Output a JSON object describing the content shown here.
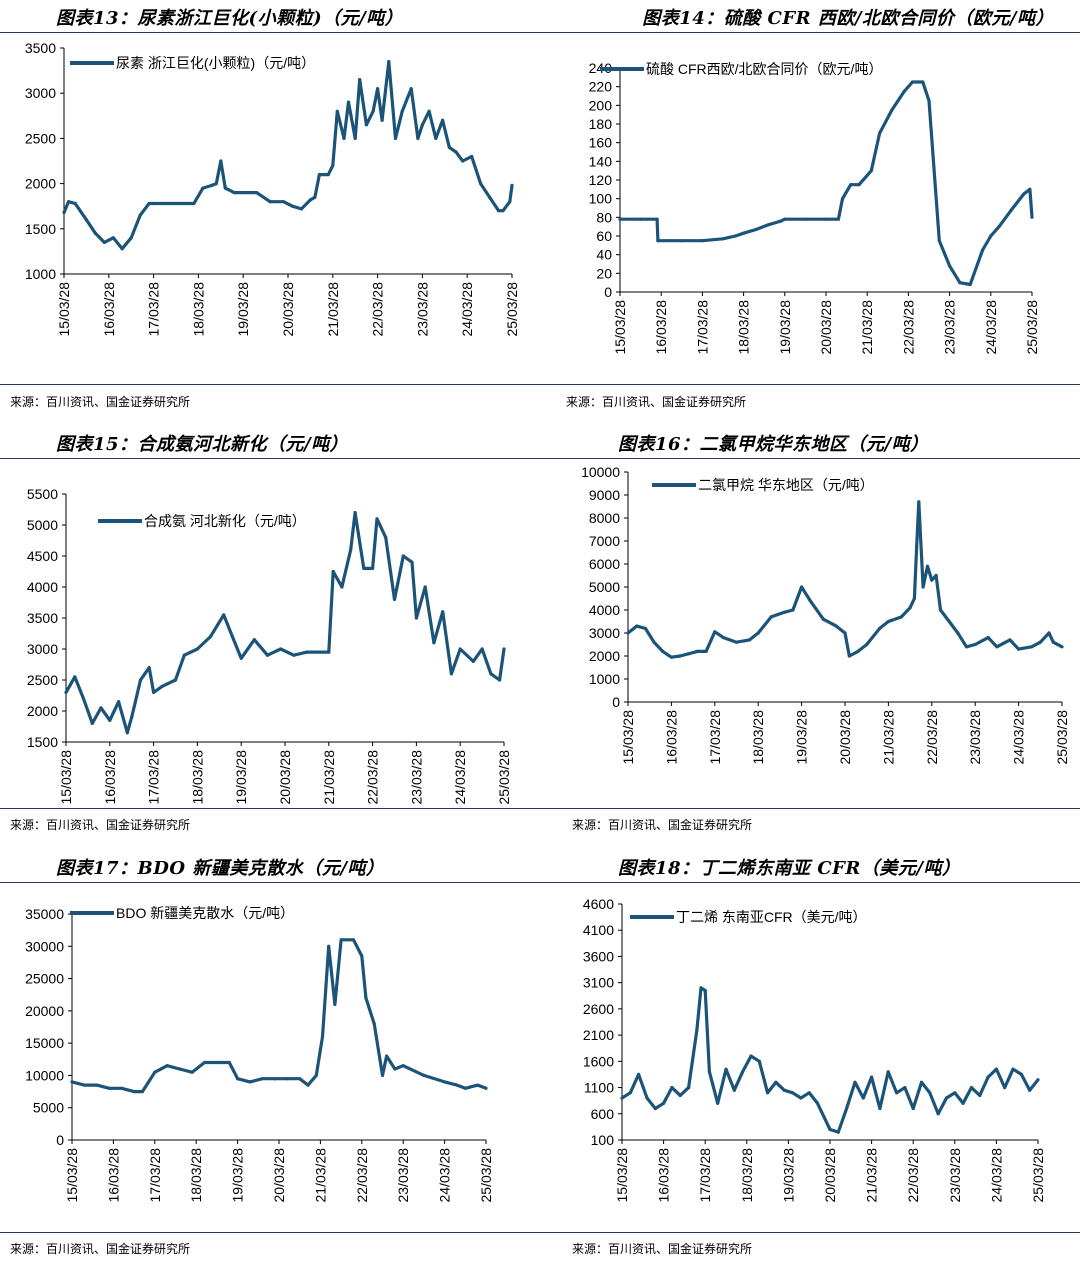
{
  "panels": [
    {
      "title": "图表13：尿素浙江巨化(小颗粒)（元/吨）",
      "source": "来源：百川资讯、国金证券研究所",
      "chart_data": {
        "type": "line",
        "title": "图表13：尿素浙江巨化(小颗粒)（元/吨）",
        "x_ticks": [
          "15/03/28",
          "16/03/28",
          "17/03/28",
          "18/03/28",
          "19/03/28",
          "20/03/28",
          "21/03/28",
          "22/03/28",
          "23/03/28",
          "24/03/28",
          "25/03/28"
        ],
        "ylim": [
          1000,
          3500
        ],
        "y_ticks": [
          1000,
          1500,
          2000,
          2500,
          3000,
          3500
        ],
        "series": [
          {
            "name": "尿素 浙江巨化(小颗粒)（元/吨）",
            "x": [
              0,
              0.1,
              0.25,
              0.5,
              0.7,
              0.9,
              1.1,
              1.3,
              1.5,
              1.7,
              1.9,
              2.0,
              2.3,
              2.6,
              2.9,
              3.1,
              3.3,
              3.4,
              3.5,
              3.6,
              3.8,
              4.0,
              4.3,
              4.6,
              4.9,
              5.1,
              5.3,
              5.5,
              5.6,
              5.7,
              5.9,
              6.0,
              6.1,
              6.25,
              6.35,
              6.5,
              6.6,
              6.75,
              6.9,
              7.0,
              7.1,
              7.25,
              7.4,
              7.55,
              7.75,
              7.9,
              8.0,
              8.15,
              8.3,
              8.45,
              8.6,
              8.75,
              8.9,
              9.1,
              9.3,
              9.5,
              9.7,
              9.8,
              9.95,
              10.0
            ],
            "values": [
              1680,
              1800,
              1780,
              1600,
              1450,
              1350,
              1400,
              1280,
              1400,
              1650,
              1780,
              1780,
              1780,
              1780,
              1780,
              1950,
              1980,
              2000,
              2250,
              1950,
              1900,
              1900,
              1900,
              1800,
              1800,
              1750,
              1720,
              1820,
              1850,
              2100,
              2100,
              2200,
              2800,
              2500,
              2900,
              2500,
              3150,
              2650,
              2800,
              3050,
              2700,
              3350,
              2500,
              2800,
              3050,
              2500,
              2650,
              2800,
              2500,
              2700,
              2400,
              2350,
              2250,
              2300,
              2000,
              1850,
              1700,
              1700,
              1800,
              1980
            ]
          }
        ]
      }
    },
    {
      "title": "图表14：硫酸 CFR 西欧/北欧合同价（欧元/吨）",
      "source": "来源：百川资讯、国金证券研究所",
      "chart_data": {
        "type": "line",
        "title": "图表14：硫酸 CFR 西欧/北欧合同价（欧元/吨）",
        "x_ticks": [
          "15/03/28",
          "16/03/28",
          "17/03/28",
          "18/03/28",
          "19/03/28",
          "20/03/28",
          "21/03/28",
          "22/03/28",
          "23/03/28",
          "24/03/28",
          "25/03/28"
        ],
        "ylim": [
          0,
          240
        ],
        "y_ticks": [
          0,
          20,
          40,
          60,
          80,
          100,
          120,
          140,
          160,
          180,
          200,
          220,
          240
        ],
        "series": [
          {
            "name": "硫酸 CFR西欧/北欧合同价（欧元/吨）",
            "x": [
              0,
              0.5,
              0.9,
              0.92,
              1.5,
              2.0,
              2.5,
              2.8,
              3.0,
              3.3,
              3.6,
              3.9,
              4.0,
              4.5,
              5.0,
              5.3,
              5.4,
              5.6,
              5.8,
              6.1,
              6.3,
              6.6,
              6.9,
              7.1,
              7.35,
              7.5,
              7.75,
              8.0,
              8.25,
              8.5,
              8.8,
              9.0,
              9.2,
              9.5,
              9.8,
              9.95,
              10.0
            ],
            "values": [
              78,
              78,
              78,
              55,
              55,
              55,
              57,
              60,
              63,
              67,
              72,
              76,
              78,
              78,
              78,
              78,
              100,
              115,
              115,
              130,
              170,
              195,
              215,
              225,
              225,
              205,
              55,
              28,
              10,
              8,
              45,
              60,
              70,
              88,
              105,
              110,
              80
            ]
          }
        ]
      }
    },
    {
      "title": "图表15：合成氨河北新化（元/吨）",
      "source": "来源：百川资讯、国金证券研究所",
      "chart_data": {
        "type": "line",
        "title": "图表15：合成氨河北新化（元/吨）",
        "x_ticks": [
          "15/03/28",
          "16/03/28",
          "17/03/28",
          "18/03/28",
          "19/03/28",
          "20/03/28",
          "21/03/28",
          "22/03/28",
          "23/03/28",
          "24/03/28",
          "25/03/28"
        ],
        "ylim": [
          1500,
          5500
        ],
        "y_ticks": [
          1500,
          2000,
          2500,
          3000,
          3500,
          4000,
          4500,
          5000,
          5500
        ],
        "series": [
          {
            "name": "合成氨 河北新化（元/吨）",
            "x": [
              0,
              0.2,
              0.4,
              0.6,
              0.8,
              1.0,
              1.2,
              1.4,
              1.5,
              1.7,
              1.9,
              2.0,
              2.2,
              2.5,
              2.7,
              3.0,
              3.3,
              3.6,
              3.8,
              4.0,
              4.3,
              4.6,
              4.9,
              5.2,
              5.5,
              5.8,
              6.0,
              6.1,
              6.3,
              6.5,
              6.6,
              6.8,
              7.0,
              7.1,
              7.3,
              7.5,
              7.7,
              7.9,
              8.0,
              8.2,
              8.4,
              8.6,
              8.8,
              9.0,
              9.3,
              9.5,
              9.7,
              9.9,
              10.0
            ],
            "values": [
              2300,
              2550,
              2200,
              1800,
              2050,
              1850,
              2150,
              1650,
              1900,
              2500,
              2700,
              2300,
              2400,
              2500,
              2900,
              3000,
              3200,
              3550,
              3200,
              2850,
              3150,
              2900,
              3000,
              2900,
              2950,
              2950,
              2950,
              4250,
              4000,
              4600,
              5200,
              4300,
              4300,
              5100,
              4800,
              3800,
              4500,
              4400,
              3500,
              4000,
              3100,
              3600,
              2600,
              3000,
              2800,
              3000,
              2600,
              2500,
              3000
            ]
          }
        ]
      }
    },
    {
      "title": "图表16：二氯甲烷华东地区（元/吨）",
      "source": "来源：百川资讯、国金证券研究所",
      "chart_data": {
        "type": "line",
        "title": "图表16：二氯甲烷华东地区（元/吨）",
        "x_ticks": [
          "15/03/28",
          "16/03/28",
          "17/03/28",
          "18/03/28",
          "19/03/28",
          "20/03/28",
          "21/03/28",
          "22/03/28",
          "23/03/28",
          "24/03/28",
          "25/03/28"
        ],
        "ylim": [
          0,
          10000
        ],
        "y_ticks": [
          0,
          1000,
          2000,
          3000,
          4000,
          5000,
          6000,
          7000,
          8000,
          9000,
          10000
        ],
        "series": [
          {
            "name": "二氯甲烷 华东地区（元/吨）",
            "x": [
              0,
              0.2,
              0.4,
              0.6,
              0.8,
              1.0,
              1.2,
              1.4,
              1.6,
              1.8,
              2.0,
              2.2,
              2.5,
              2.8,
              3.0,
              3.3,
              3.6,
              3.8,
              4.0,
              4.2,
              4.5,
              4.8,
              5.0,
              5.1,
              5.3,
              5.5,
              5.8,
              6.0,
              6.3,
              6.5,
              6.6,
              6.65,
              6.7,
              6.8,
              6.9,
              7.0,
              7.1,
              7.2,
              7.4,
              7.6,
              7.8,
              8.0,
              8.3,
              8.5,
              8.8,
              9.0,
              9.3,
              9.5,
              9.7,
              9.8,
              10.0
            ],
            "values": [
              3000,
              3300,
              3200,
              2600,
              2200,
              1950,
              2000,
              2100,
              2200,
              2200,
              3050,
              2800,
              2600,
              2700,
              3000,
              3700,
              3900,
              4000,
              5000,
              4400,
              3600,
              3300,
              3000,
              2000,
              2200,
              2500,
              3200,
              3500,
              3700,
              4100,
              4500,
              6700,
              8700,
              5000,
              5900,
              5300,
              5500,
              4000,
              3500,
              3000,
              2400,
              2500,
              2800,
              2400,
              2700,
              2300,
              2400,
              2600,
              3000,
              2600,
              2400
            ]
          }
        ]
      }
    },
    {
      "title": "图表17：BDO 新疆美克散水（元/吨）",
      "source": "来源：百川资讯、国金证券研究所",
      "chart_data": {
        "type": "line",
        "title": "图表17：BDO 新疆美克散水（元/吨）",
        "x_ticks": [
          "15/03/28",
          "16/03/28",
          "17/03/28",
          "18/03/28",
          "19/03/28",
          "20/03/28",
          "21/03/28",
          "22/03/28",
          "23/03/28",
          "24/03/28",
          "25/03/28"
        ],
        "ylim": [
          0,
          35000
        ],
        "y_ticks": [
          0,
          5000,
          10000,
          15000,
          20000,
          25000,
          30000,
          35000
        ],
        "series": [
          {
            "name": "BDO 新疆美克散水（元/吨）",
            "x": [
              0,
              0.3,
              0.6,
              0.9,
              1.2,
              1.5,
              1.7,
              2.0,
              2.3,
              2.6,
              2.9,
              3.2,
              3.5,
              3.8,
              4.0,
              4.3,
              4.6,
              4.9,
              5.2,
              5.5,
              5.7,
              5.9,
              6.0,
              6.05,
              6.2,
              6.35,
              6.5,
              6.8,
              7.0,
              7.1,
              7.3,
              7.5,
              7.6,
              7.8,
              8.0,
              8.5,
              9.0,
              9.3,
              9.5,
              9.8,
              10.0
            ],
            "values": [
              9000,
              8500,
              8500,
              8000,
              8000,
              7500,
              7500,
              10500,
              11500,
              11000,
              10500,
              12000,
              12000,
              12000,
              9500,
              9000,
              9500,
              9500,
              9500,
              9500,
              8500,
              10000,
              14000,
              16000,
              30000,
              21000,
              31000,
              31000,
              28500,
              22000,
              18000,
              10000,
              13000,
              11000,
              11500,
              10000,
              9000,
              8500,
              8000,
              8500,
              8000
            ]
          }
        ]
      }
    },
    {
      "title": "图表18：丁二烯东南亚 CFR（美元/吨）",
      "source": "来源：百川资讯、国金证券研究所",
      "chart_data": {
        "type": "line",
        "title": "图表18：丁二烯东南亚 CFR（美元/吨）",
        "x_ticks": [
          "15/03/28",
          "16/03/28",
          "17/03/28",
          "18/03/28",
          "19/03/28",
          "20/03/28",
          "21/03/28",
          "22/03/28",
          "23/03/28",
          "24/03/28",
          "25/03/28"
        ],
        "ylim": [
          100,
          4600
        ],
        "y_ticks": [
          100,
          600,
          1100,
          1600,
          2100,
          2600,
          3100,
          3600,
          4100,
          4600
        ],
        "series": [
          {
            "name": "丁二烯 东南亚CFR（美元/吨）",
            "x": [
              0,
              0.2,
              0.4,
              0.6,
              0.8,
              1.0,
              1.2,
              1.4,
              1.6,
              1.8,
              1.9,
              2.0,
              2.1,
              2.3,
              2.5,
              2.7,
              2.9,
              3.1,
              3.3,
              3.5,
              3.7,
              3.9,
              4.1,
              4.3,
              4.5,
              4.7,
              5.0,
              5.2,
              5.4,
              5.6,
              5.8,
              6.0,
              6.2,
              6.4,
              6.6,
              6.8,
              7.0,
              7.2,
              7.4,
              7.6,
              7.8,
              8.0,
              8.2,
              8.4,
              8.6,
              8.8,
              9.0,
              9.2,
              9.4,
              9.6,
              9.8,
              10.0
            ],
            "values": [
              900,
              1000,
              1350,
              900,
              700,
              800,
              1100,
              950,
              1100,
              2200,
              3000,
              2950,
              1400,
              800,
              1450,
              1050,
              1400,
              1700,
              1600,
              1000,
              1200,
              1050,
              1000,
              900,
              1000,
              800,
              300,
              250,
              700,
              1200,
              900,
              1300,
              700,
              1400,
              1000,
              1100,
              700,
              1200,
              1000,
              600,
              900,
              1000,
              800,
              1100,
              950,
              1300,
              1450,
              1100,
              1450,
              1350,
              1050,
              1250
            ]
          }
        ]
      }
    }
  ],
  "style": {
    "line_color": "#1b5478",
    "rule_color": "#1f3864"
  }
}
